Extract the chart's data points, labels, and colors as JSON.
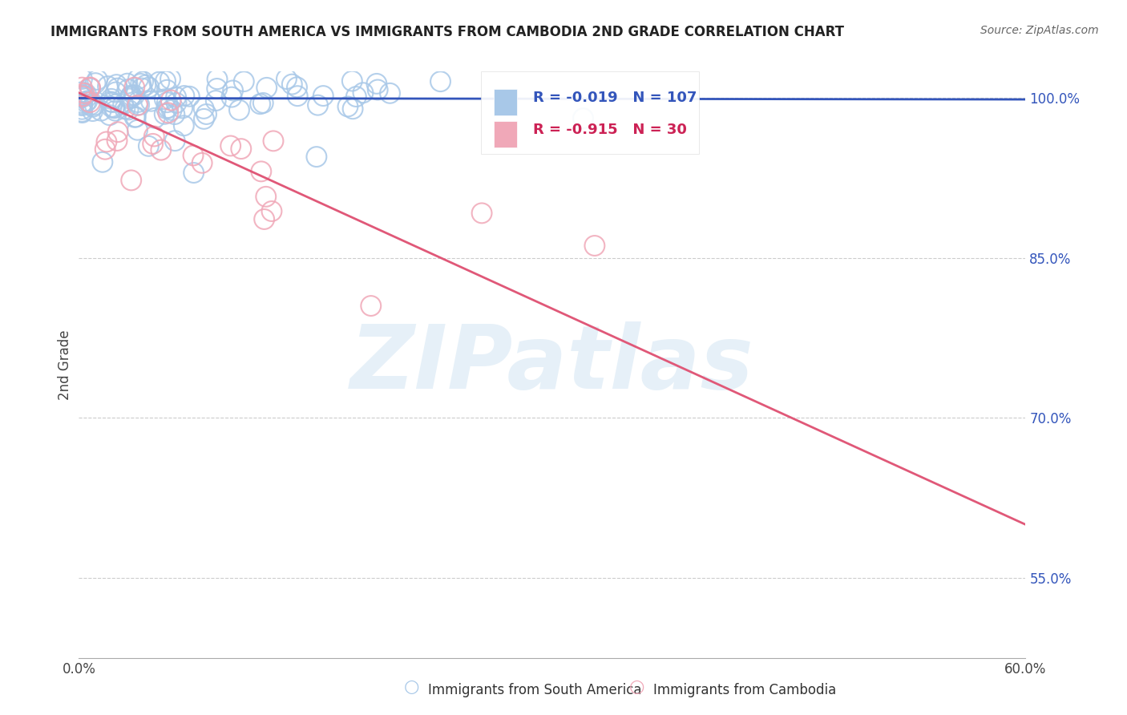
{
  "title": "IMMIGRANTS FROM SOUTH AMERICA VS IMMIGRANTS FROM CAMBODIA 2ND GRADE CORRELATION CHART",
  "source": "Source: ZipAtlas.com",
  "ylabel": "2nd Grade",
  "background_color": "#ffffff",
  "watermark": "ZIPatlas",
  "blue_color": "#a8c8e8",
  "pink_color": "#f0a8b8",
  "blue_line_color": "#3355bb",
  "pink_line_color": "#e05878",
  "legend_blue_R": "-0.019",
  "legend_blue_N": "107",
  "legend_pink_R": "-0.915",
  "legend_pink_N": "30",
  "xmin": 0.0,
  "xmax": 0.6,
  "ymin": 0.475,
  "ymax": 1.025,
  "yticks": [
    0.55,
    0.7,
    0.85,
    1.0
  ],
  "ytick_labels": [
    "55.0%",
    "70.0%",
    "85.0%",
    "100.0%"
  ],
  "xticks": [
    0.0,
    0.1,
    0.2,
    0.3,
    0.4,
    0.5,
    0.6
  ],
  "xtick_labels": [
    "0.0%",
    "",
    "",
    "",
    "",
    "",
    "60.0%"
  ]
}
